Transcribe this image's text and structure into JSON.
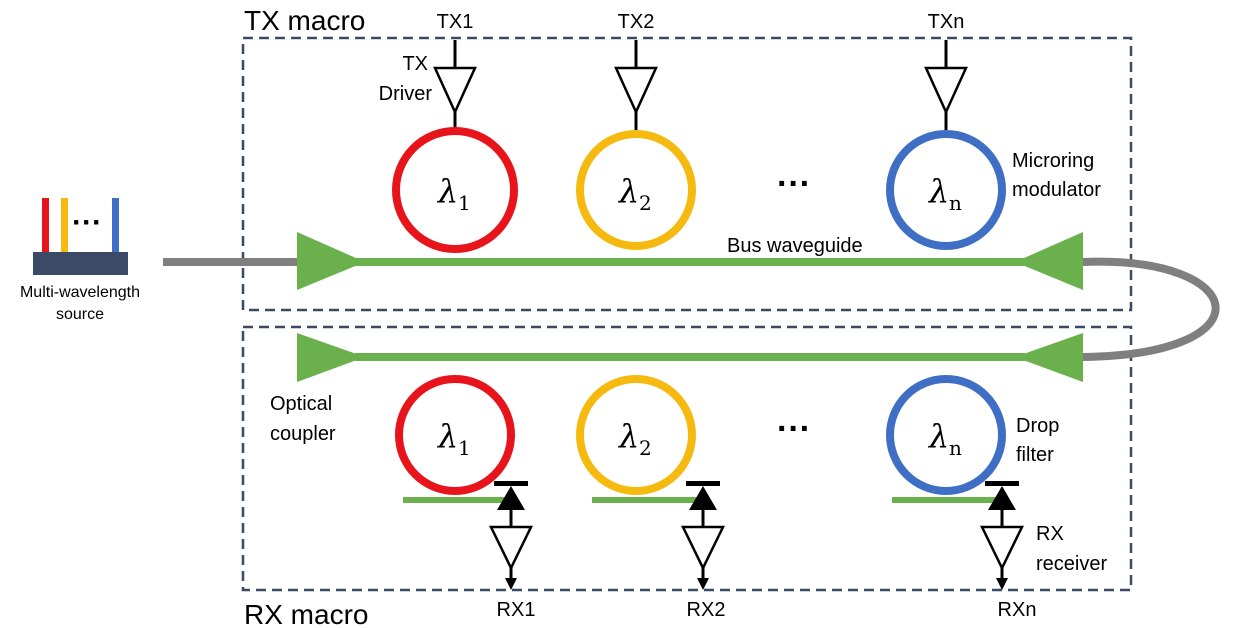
{
  "tx_macro": {
    "title": "TX macro",
    "inputs": [
      "TX1",
      "TX2",
      "TXn"
    ],
    "driver_label": [
      "TX",
      "Driver"
    ],
    "modulator_label": [
      "Microring",
      "modulator"
    ],
    "bus_label": "Bus waveguide"
  },
  "rx_macro": {
    "title": "RX macro",
    "outputs": [
      "RX1",
      "RX2",
      "RXn"
    ],
    "coupler_label": [
      "Optical",
      "coupler"
    ],
    "filter_label": [
      "Drop",
      "filter"
    ],
    "receiver_label": [
      "RX",
      "receiver"
    ]
  },
  "rings": [
    {
      "symbol": "λ",
      "sub": "1",
      "color": "#e8141b"
    },
    {
      "symbol": "λ",
      "sub": "2",
      "color": "#f5b90f"
    },
    {
      "symbol": "λ",
      "sub": "n",
      "color": "#3f6fc4"
    }
  ],
  "ellipsis": "···",
  "source": {
    "label": [
      "Multi-wavelength",
      "source"
    ],
    "colors": [
      "#e8141b",
      "#f5b90f",
      "#3f6fc4"
    ],
    "base_color": "#3b4a66"
  },
  "colors": {
    "waveguide": "#6ab04c",
    "fiber": "#7f7f7f",
    "box_border": "#3b4a66"
  }
}
